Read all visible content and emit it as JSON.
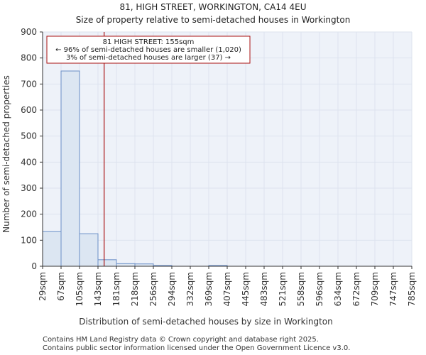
{
  "chart_data": {
    "type": "bar",
    "title_line1": "81, HIGH STREET, WORKINGTON, CA14 4EU",
    "title_line2": "Size of property relative to semi-detached houses in Workington",
    "xlabel": "Distribution of semi-detached houses by size in Workington",
    "ylabel": "Number of semi-detached properties",
    "ylim": [
      0,
      900
    ],
    "yticks": [
      0,
      100,
      200,
      300,
      400,
      500,
      600,
      700,
      800,
      900
    ],
    "bin_edges": [
      29,
      67,
      105,
      143,
      181,
      218,
      256,
      294,
      332,
      369,
      407,
      445,
      483,
      521,
      558,
      596,
      634,
      672,
      709,
      747,
      785
    ],
    "tick_labels": [
      "29sqm",
      "67sqm",
      "105sqm",
      "143sqm",
      "181sqm",
      "218sqm",
      "256sqm",
      "294sqm",
      "332sqm",
      "369sqm",
      "407sqm",
      "445sqm",
      "483sqm",
      "521sqm",
      "558sqm",
      "596sqm",
      "634sqm",
      "672sqm",
      "709sqm",
      "747sqm",
      "785sqm"
    ],
    "values": [
      133,
      750,
      125,
      25,
      10,
      9,
      3,
      0,
      0,
      3,
      0,
      0,
      0,
      0,
      0,
      0,
      0,
      0,
      0,
      0
    ],
    "marker": {
      "value": 155
    },
    "annotation": {
      "line1": "81 HIGH STREET: 155sqm",
      "line2": "← 96% of semi-detached houses are smaller (1,020)",
      "line3": "3% of semi-detached houses are larger (37) →"
    },
    "colors": {
      "bar_fill": "#dce6f2",
      "bar_stroke": "#6a8fc7",
      "marker": "#aa1111",
      "grid": "#dde3ee"
    }
  },
  "footer": {
    "line1": "Contains HM Land Registry data © Crown copyright and database right 2025.",
    "line2": "Contains public sector information licensed under the Open Government Licence v3.0."
  }
}
